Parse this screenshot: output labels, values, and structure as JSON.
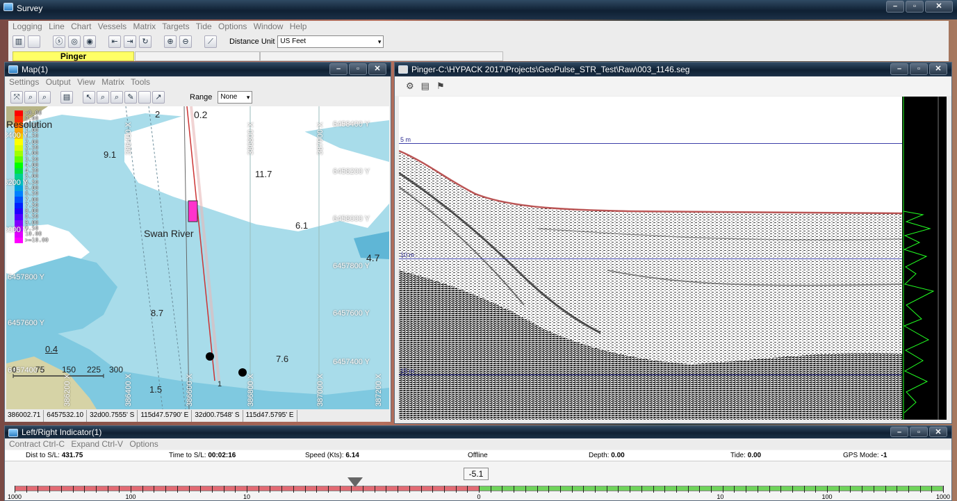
{
  "survey": {
    "title": "Survey",
    "menu": [
      "Logging",
      "Line",
      "Chart",
      "Vessels",
      "Matrix",
      "Targets",
      "Tide",
      "Options",
      "Window",
      "Help"
    ],
    "distance_label": "Distance Unit",
    "distance_unit": "US Feet",
    "active_tab": "Pinger"
  },
  "map": {
    "title": "Map(1)",
    "menu": [
      "Settings",
      "Output",
      "View",
      "Matrix",
      "Tools"
    ],
    "range_label": "Range",
    "range_value": "None",
    "legend": [
      "<0.00",
      "0.00",
      "0.50",
      "1.00",
      "1.50",
      "2.00",
      "2.50",
      "3.00",
      "3.50",
      "4.00",
      "4.50",
      "5.00",
      "5.50",
      "6.00",
      "6.50",
      "7.00",
      "7.50",
      "8.00",
      "8.50",
      "9.00",
      "9.50",
      "10.00",
      ">=10.00"
    ],
    "legend_colors": [
      "#ff0000",
      "#ff2a00",
      "#ff6a00",
      "#ffa500",
      "#ffd000",
      "#ffff00",
      "#d8ff00",
      "#a0ff00",
      "#60ff00",
      "#00ff00",
      "#00e040",
      "#00d090",
      "#00c0c0",
      "#00a0e0",
      "#0080ff",
      "#0050ff",
      "#0020ff",
      "#2000ff",
      "#5000ff",
      "#8000ff",
      "#b000ff",
      "#e000ff",
      "#ff00ff"
    ],
    "resolution_text": "Resolution",
    "place_name": "Swan River",
    "soundings": [
      "2",
      "0.2",
      "9.1",
      "11.7",
      "6.1",
      "4.7",
      "8.7",
      "0.4",
      "7.6",
      "1.5",
      "1"
    ],
    "grid_y": [
      "6458400 Y",
      "6458200 Y",
      "6458000 Y",
      "6457800 Y",
      "6457600 Y",
      "6457400 Y"
    ],
    "grid_y_left": [
      "6458400 Y",
      "6458200 Y",
      "6458000 Y",
      "6457800 Y",
      "6457600 Y",
      "6457400 Y"
    ],
    "grid_x": [
      "386400 X",
      "386800 X",
      "387000 X"
    ],
    "grid_x_bottom": [
      "386200 X",
      "386400 X",
      "386600 X",
      "386800 X",
      "387000 X",
      "387200 X"
    ],
    "scale_labels": [
      "0",
      "75",
      "150",
      "225",
      "300"
    ],
    "status": [
      "386002.71",
      "6457532.10",
      "32d00.7555' S",
      "115d47.5790' E",
      "32d00.7548' S",
      "115d47.5795' E"
    ]
  },
  "pinger": {
    "title": "Pinger-C:\\HYPACK 2017\\Projects\\GeoPulse_STR_Test\\Raw\\003_1146.seg",
    "depth_labels": [
      "5 m",
      "10 m",
      "15 m"
    ]
  },
  "lr": {
    "title": "Left/Right Indicator(1)",
    "menu": [
      "Contract Ctrl-C",
      "Expand Ctrl-V",
      "Options"
    ],
    "stats": [
      {
        "label": "Dist to S/L:",
        "value": "431.75"
      },
      {
        "label": "Time to S/L:",
        "value": "00:02:16"
      },
      {
        "label": "Speed (Kts):",
        "value": "6.14"
      },
      {
        "label": "",
        "value": "Offline"
      },
      {
        "label": "Depth:",
        "value": "0.00"
      },
      {
        "label": "Tide:",
        "value": "0.00"
      },
      {
        "label": "GPS Mode:",
        "value": "-1"
      }
    ],
    "offset_value": "-5.1",
    "scale_labels": [
      "1000",
      "100",
      "10",
      "0",
      "10",
      "100",
      "1000"
    ],
    "colors": {
      "left": "#e26a73",
      "right": "#6fd35a"
    }
  }
}
